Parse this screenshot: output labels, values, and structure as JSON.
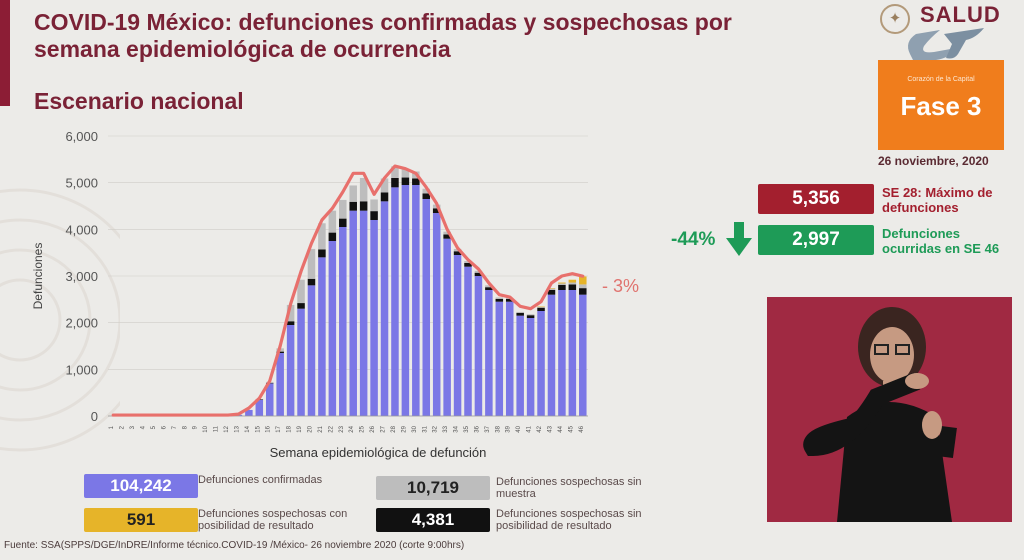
{
  "header": {
    "title": "COVID-19 México: defunciones confirmadas y sospechosas por semana epidemiológica de ocurrencia",
    "subtitle": "Escenario nacional",
    "logo_text": "SALUD",
    "cdmx_tagline": "Corazón de la Capital",
    "phase": "Fase 3",
    "date": "26 noviembre, 2020"
  },
  "stats": {
    "max_value": "5,356",
    "max_label": "SE 28: Máximo de defunciones",
    "current_value": "2,997",
    "current_label": "Defunciones ocurridas en SE 46",
    "change_pct": "-44%",
    "chart_change_pct": "- 3%"
  },
  "legend": [
    {
      "value": "104,242",
      "label": "Defunciones confirmadas"
    },
    {
      "value": "10,719",
      "label": "Defunciones sospechosas sin muestra"
    },
    {
      "value": "591",
      "label": "Defunciones sospechosas con posibilidad de resultado"
    },
    {
      "value": "4,381",
      "label": "Defunciones sospechosas sin posibilidad de resultado"
    }
  ],
  "footer": "Fuente: SSA(SPPS/DGE/InDRE/Informe técnico.COVID-19 /México- 26 noviembre 2020 (corte 9:00hrs)",
  "colors": {
    "confirmed": "#7b77e6",
    "no_sample": "#bdbdbd",
    "possible": "#e6b429",
    "no_possible": "#111111",
    "line": "#e8706c",
    "max_box": "#a31f2e",
    "current_box": "#1e9b57",
    "phase_box": "#f07d1c"
  },
  "chart_data": {
    "type": "bar",
    "xlabel": "Semana epidemiológica de defunción",
    "ylabel": "Defunciones",
    "ylim": [
      0,
      6000
    ],
    "yticks": [
      "0",
      "1,000",
      "2,000",
      "3,000",
      "4,000",
      "5,000",
      "6,000"
    ],
    "categories": [
      "1",
      "2",
      "3",
      "4",
      "5",
      "6",
      "7",
      "8",
      "9",
      "10",
      "11",
      "12",
      "13",
      "14",
      "15",
      "16",
      "17",
      "18",
      "19",
      "20",
      "21",
      "22",
      "23",
      "24",
      "25",
      "26",
      "27",
      "28",
      "29",
      "30",
      "31",
      "32",
      "33",
      "34",
      "35",
      "36",
      "37",
      "38",
      "39",
      "40",
      "41",
      "42",
      "43",
      "44",
      "45",
      "46"
    ],
    "series": [
      {
        "name": "Defunciones confirmadas",
        "values": [
          0,
          0,
          0,
          0,
          0,
          0,
          0,
          0,
          0,
          0,
          0,
          3,
          25,
          130,
          350,
          700,
          1350,
          1950,
          2300,
          2800,
          3400,
          3750,
          4050,
          4400,
          4400,
          4200,
          4600,
          4900,
          4950,
          4950,
          4650,
          4350,
          3800,
          3450,
          3200,
          3000,
          2700,
          2450,
          2450,
          2150,
          2100,
          2250,
          2600,
          2700,
          2700,
          2600
        ]
      },
      {
        "name": "Defunciones sospechosas sin muestra",
        "values": [
          0,
          0,
          0,
          0,
          0,
          0,
          0,
          0,
          0,
          0,
          0,
          0,
          0,
          0,
          10,
          20,
          70,
          350,
          500,
          640,
          560,
          470,
          400,
          350,
          500,
          250,
          300,
          250,
          180,
          150,
          100,
          80,
          60,
          50,
          40,
          40,
          40,
          30,
          20,
          20,
          20,
          20,
          30,
          30,
          40,
          80
        ]
      },
      {
        "name": "Defunciones sospechosas con posibilidad de resultado",
        "values": [
          0,
          0,
          0,
          0,
          0,
          0,
          0,
          0,
          0,
          0,
          0,
          0,
          0,
          0,
          0,
          0,
          0,
          0,
          0,
          0,
          0,
          0,
          0,
          0,
          0,
          0,
          0,
          0,
          0,
          0,
          0,
          0,
          0,
          0,
          0,
          0,
          0,
          0,
          0,
          0,
          0,
          5,
          10,
          20,
          60,
          170
        ]
      },
      {
        "name": "Defunciones sospechosas sin posibilidad de resultado",
        "values": [
          0,
          0,
          0,
          0,
          0,
          0,
          0,
          0,
          0,
          0,
          0,
          0,
          0,
          0,
          5,
          10,
          30,
          80,
          120,
          140,
          170,
          180,
          180,
          190,
          200,
          190,
          190,
          200,
          160,
          140,
          120,
          100,
          90,
          80,
          80,
          70,
          60,
          60,
          60,
          60,
          60,
          70,
          100,
          110,
          120,
          140
        ]
      },
      {
        "name": "Total",
        "values": [
          20,
          20,
          20,
          20,
          20,
          20,
          20,
          20,
          20,
          20,
          20,
          20,
          40,
          170,
          380,
          750,
          1500,
          2400,
          3100,
          3700,
          4200,
          4450,
          4800,
          5200,
          5200,
          4750,
          5100,
          5356,
          5300,
          5200,
          4900,
          4550,
          4000,
          3600,
          3350,
          3150,
          2850,
          2600,
          2550,
          2350,
          2300,
          2450,
          2850,
          3000,
          3050,
          2997
        ]
      }
    ]
  }
}
